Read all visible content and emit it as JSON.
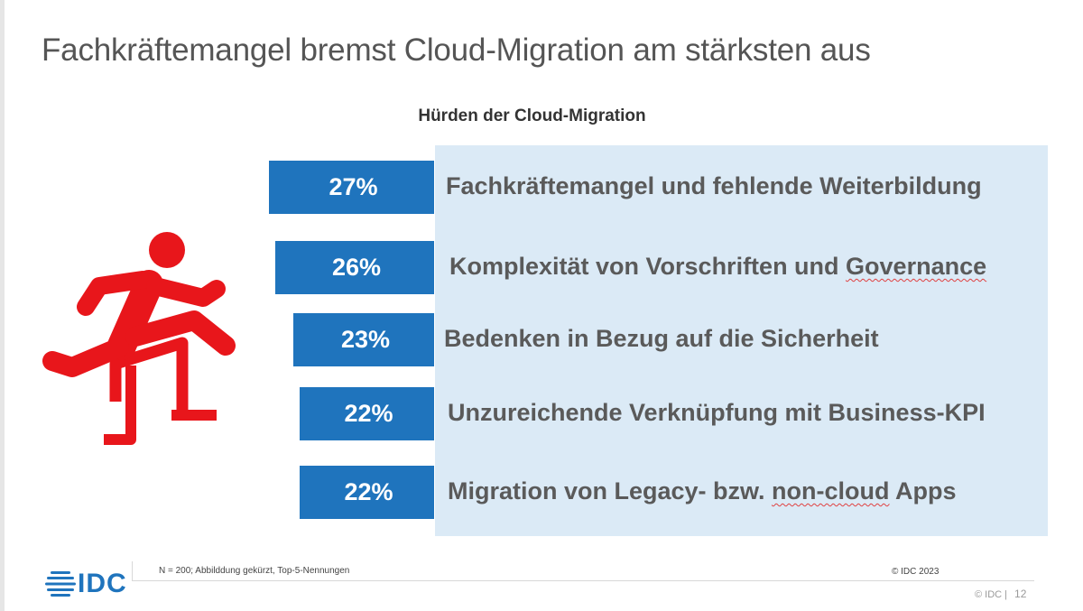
{
  "slide": {
    "title": "Fachkräftemangel bremst Cloud-Migration am stärksten aus",
    "footnote": "N = 200; Abbilddung gekürzt, Top-5-Nennungen",
    "copyright": "© IDC 2023",
    "footer_copyright": "© IDC |",
    "page_number": "12",
    "logo_text": "IDC"
  },
  "colors": {
    "bar": "#1f74bd",
    "panel": "#dbeaf6",
    "icon": "#e8161b",
    "label": "#5a5a5a"
  },
  "icon": "hurdle-runner-icon",
  "chart_data": {
    "type": "bar",
    "title": "Hürden der Cloud-Migration",
    "categories": [
      "Fachkräftemangel und fehlende Weiterbildung",
      "Komplexität von Vorschriften und Governance",
      "Bedenken in Bezug auf die Sicherheit",
      "Unzureichende Verknüpfung mit Business-KPI",
      "Migration von Legacy- bzw. non-cloud Apps"
    ],
    "values": [
      27,
      26,
      23,
      22,
      22
    ],
    "value_labels": [
      "27%",
      "26%",
      "23%",
      "22%",
      "22%"
    ],
    "unit": "%",
    "orientation": "horizontal",
    "grid": false
  }
}
